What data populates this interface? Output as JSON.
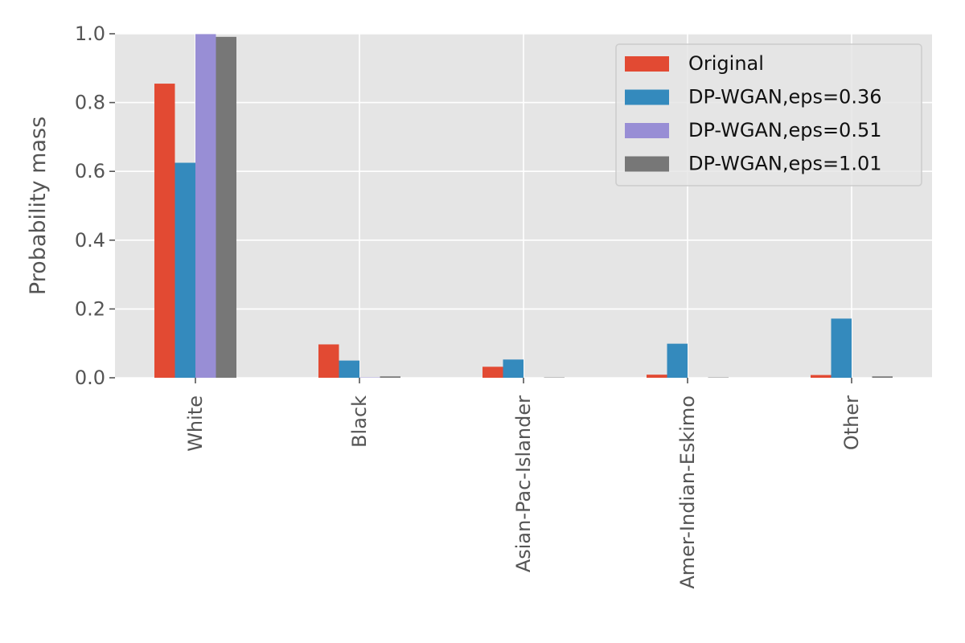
{
  "chart_data": {
    "type": "bar",
    "title": "",
    "xlabel": "",
    "ylabel": "Probability mass",
    "ylim": [
      0,
      1.0
    ],
    "yticks": [
      "0.0",
      "0.2",
      "0.4",
      "0.6",
      "0.8",
      "1.0"
    ],
    "grid": true,
    "legend_position": "top-right",
    "categories": [
      "White",
      "Black",
      "Asian-Pac-Islander",
      "Amer-Indian-Eskimo",
      "Other"
    ],
    "series": [
      {
        "name": "Original",
        "color": "#E24A33",
        "values": [
          0.855,
          0.097,
          0.032,
          0.009,
          0.008
        ]
      },
      {
        "name": "DP-WGAN,eps=0.36",
        "color": "#348ABD",
        "values": [
          0.625,
          0.05,
          0.053,
          0.099,
          0.172
        ]
      },
      {
        "name": "DP-WGAN,eps=0.51",
        "color": "#988ED5",
        "values": [
          0.999,
          0.001,
          0.0,
          0.0,
          0.0
        ]
      },
      {
        "name": "DP-WGAN,eps=1.01",
        "color": "#777777",
        "values": [
          0.991,
          0.004,
          0.001,
          0.001,
          0.004
        ]
      }
    ]
  }
}
